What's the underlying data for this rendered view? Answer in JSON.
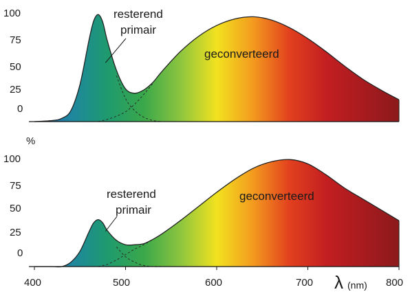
{
  "chart_data": [
    {
      "type": "area",
      "ytick_labels": [
        "100",
        "75",
        "50",
        "25",
        "0"
      ],
      "y_axis_unit": "%",
      "xlim": [
        400,
        800
      ],
      "ylim": [
        0,
        100
      ],
      "x": [
        400,
        420,
        430,
        440,
        450,
        460,
        465,
        470,
        475,
        480,
        490,
        500,
        510,
        520,
        530,
        540,
        560,
        580,
        600,
        620,
        640,
        660,
        680,
        700,
        720,
        740,
        760,
        780,
        800
      ],
      "series": [
        {
          "name": "resterend primair",
          "values": [
            0,
            1,
            3,
            10,
            34,
            75,
            92,
            98,
            90,
            72,
            42,
            21,
            10,
            4,
            1,
            0,
            0,
            0,
            0,
            0,
            0,
            0,
            0,
            0,
            0,
            0,
            0,
            0,
            0
          ]
        },
        {
          "name": "geconverteerd",
          "values": [
            0,
            0,
            0,
            0,
            0,
            0,
            0,
            0,
            1,
            2,
            5,
            9,
            16,
            25,
            35,
            46,
            64,
            78,
            88,
            94,
            96,
            93,
            86,
            76,
            64,
            51,
            39,
            29,
            20
          ]
        }
      ],
      "annotations": [
        {
          "text": "resterend\nprimair",
          "points_to_x": 475
        },
        {
          "text": "geconverteerd",
          "x": 630
        }
      ],
      "fill": "visible spectrum gradient",
      "annotation_lines": [
        "resterend",
        "primair",
        "geconverteerd"
      ]
    },
    {
      "type": "area",
      "ytick_labels": [
        "100",
        "75",
        "50",
        "25",
        "0"
      ],
      "xlabel": "λ (nm)",
      "xtick_labels": [
        "400",
        "500",
        "600",
        "700",
        "800"
      ],
      "xlim": [
        400,
        800
      ],
      "ylim": [
        0,
        100
      ],
      "x": [
        400,
        420,
        430,
        440,
        450,
        460,
        465,
        470,
        475,
        480,
        490,
        500,
        510,
        520,
        530,
        540,
        560,
        580,
        600,
        620,
        640,
        660,
        680,
        700,
        720,
        740,
        760,
        780,
        800
      ],
      "series": [
        {
          "name": "resterend primair",
          "values": [
            0,
            0,
            0,
            4,
            14,
            32,
            40,
            43,
            39,
            31,
            18,
            9,
            4,
            1,
            0,
            0,
            0,
            0,
            0,
            0,
            0,
            0,
            0,
            0,
            0,
            0,
            0,
            0,
            0
          ]
        },
        {
          "name": "geconverteerd",
          "values": [
            0,
            0,
            0,
            0,
            0,
            0,
            0,
            0,
            1,
            2,
            6,
            11,
            16,
            20,
            25,
            30,
            42,
            55,
            68,
            80,
            90,
            96,
            98,
            94,
            84,
            72,
            62,
            52,
            42
          ]
        }
      ],
      "annotations": [
        {
          "text": "resterend\nprimair",
          "points_to_x": 470
        },
        {
          "text": "geconverteerd",
          "x": 700
        }
      ],
      "fill": "visible spectrum gradient",
      "annotation_lines": [
        "resterend",
        "primair",
        "geconverteerd"
      ],
      "xlabel_symbol": "λ",
      "xlabel_unit": "(nm)"
    }
  ],
  "colors": {
    "spectrum": [
      "#1d5fa6",
      "#1f86a0",
      "#1e9a6e",
      "#3aa84a",
      "#8cc53f",
      "#f2e21f",
      "#f39a1f",
      "#e2401e",
      "#c31f21",
      "#a81b1f",
      "#8c1a1b"
    ],
    "outline": "#222222",
    "axis": "#111111"
  }
}
